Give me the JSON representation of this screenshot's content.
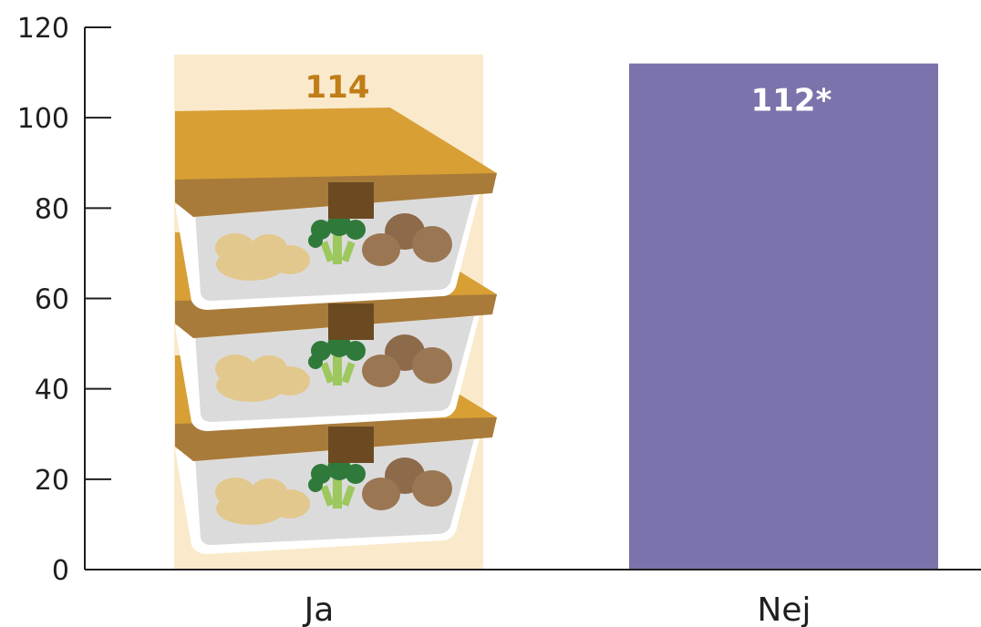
{
  "chart_data": {
    "type": "bar",
    "categories": [
      "Ja",
      "Nej"
    ],
    "values": [
      114,
      112
    ],
    "value_labels": [
      "114",
      "112*"
    ],
    "ylim": [
      0,
      120
    ],
    "yticks": [
      0,
      20,
      40,
      60,
      80,
      100,
      120
    ],
    "title": "",
    "xlabel": "",
    "ylabel": "",
    "grid": false,
    "colors": {
      "bar_ja": "#faeacb",
      "bar_nej": "#7b73ab",
      "label_ja": "#c07d18",
      "label_nej": "#ffffff",
      "axis": "#1f1f1f"
    },
    "illustration": "stacked food containers with potatoes, broccoli and mushrooms"
  }
}
